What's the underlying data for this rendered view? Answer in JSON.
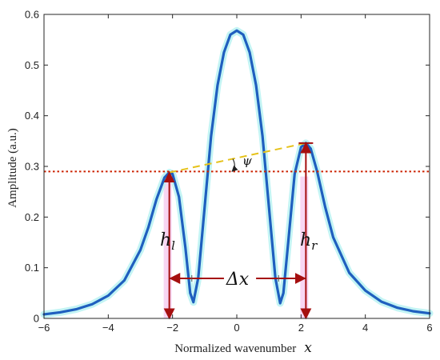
{
  "chart_data": {
    "type": "line",
    "xlabel": "Normalized wavenumber",
    "xlabel_symbol": "x",
    "ylabel": "Amplitude (a.u.)",
    "xlim": [
      -6,
      6
    ],
    "ylim": [
      0,
      0.6
    ],
    "x_ticks": [
      -6,
      -4,
      -2,
      0,
      2,
      4,
      6
    ],
    "y_ticks": [
      0,
      0.1,
      0.2,
      0.3,
      0.4,
      0.5,
      0.6
    ],
    "x_tick_labels": [
      "−6",
      "−4",
      "−2",
      "0",
      "2",
      "4",
      "6"
    ],
    "y_tick_labels": [
      "0",
      "0.1",
      "0.2",
      "0.3",
      "0.4",
      "0.5",
      "0.6"
    ],
    "grid": false,
    "series": [
      {
        "color": "#1f5fbf",
        "x": [
          -6,
          -5.5,
          -5,
          -4.5,
          -4,
          -3.5,
          -3,
          -2.75,
          -2.5,
          -2.25,
          -2.1,
          -2,
          -1.8,
          -1.6,
          -1.45,
          -1.35,
          -1.2,
          -1,
          -0.8,
          -0.6,
          -0.4,
          -0.2,
          0,
          0.2,
          0.4,
          0.6,
          0.8,
          1,
          1.2,
          1.35,
          1.45,
          1.6,
          1.8,
          2,
          2.15,
          2.3,
          2.5,
          2.75,
          3,
          3.5,
          4,
          4.5,
          5,
          5.5,
          6
        ],
        "y": [
          0.008,
          0.012,
          0.018,
          0.028,
          0.045,
          0.075,
          0.135,
          0.18,
          0.235,
          0.278,
          0.288,
          0.285,
          0.24,
          0.14,
          0.05,
          0.032,
          0.08,
          0.22,
          0.36,
          0.46,
          0.525,
          0.56,
          0.568,
          0.56,
          0.525,
          0.46,
          0.36,
          0.22,
          0.08,
          0.03,
          0.05,
          0.15,
          0.285,
          0.338,
          0.346,
          0.335,
          0.29,
          0.22,
          0.16,
          0.09,
          0.055,
          0.033,
          0.021,
          0.014,
          0.01
        ]
      }
    ],
    "threshold_line": {
      "y": 0.29,
      "color": "#cc2200"
    },
    "peaks": {
      "left": {
        "x": -2.1,
        "y": 0.288
      },
      "right": {
        "x": 2.15,
        "y": 0.346
      }
    },
    "dip_lines_x": [
      -1.4,
      1.3
    ],
    "annotations": {
      "h_left": "h",
      "h_left_sub": "l",
      "h_right": "h",
      "h_right_sub": "r",
      "delta_x": "Δx",
      "psi": "ψ"
    },
    "colors": {
      "curve": "#1f5fbf",
      "glow": "#b8f2f2",
      "pink_band": "#f6c8ef",
      "arrows": "#a50f0f",
      "dashed": "#e6c21a",
      "dotted": "#cc2200"
    }
  }
}
